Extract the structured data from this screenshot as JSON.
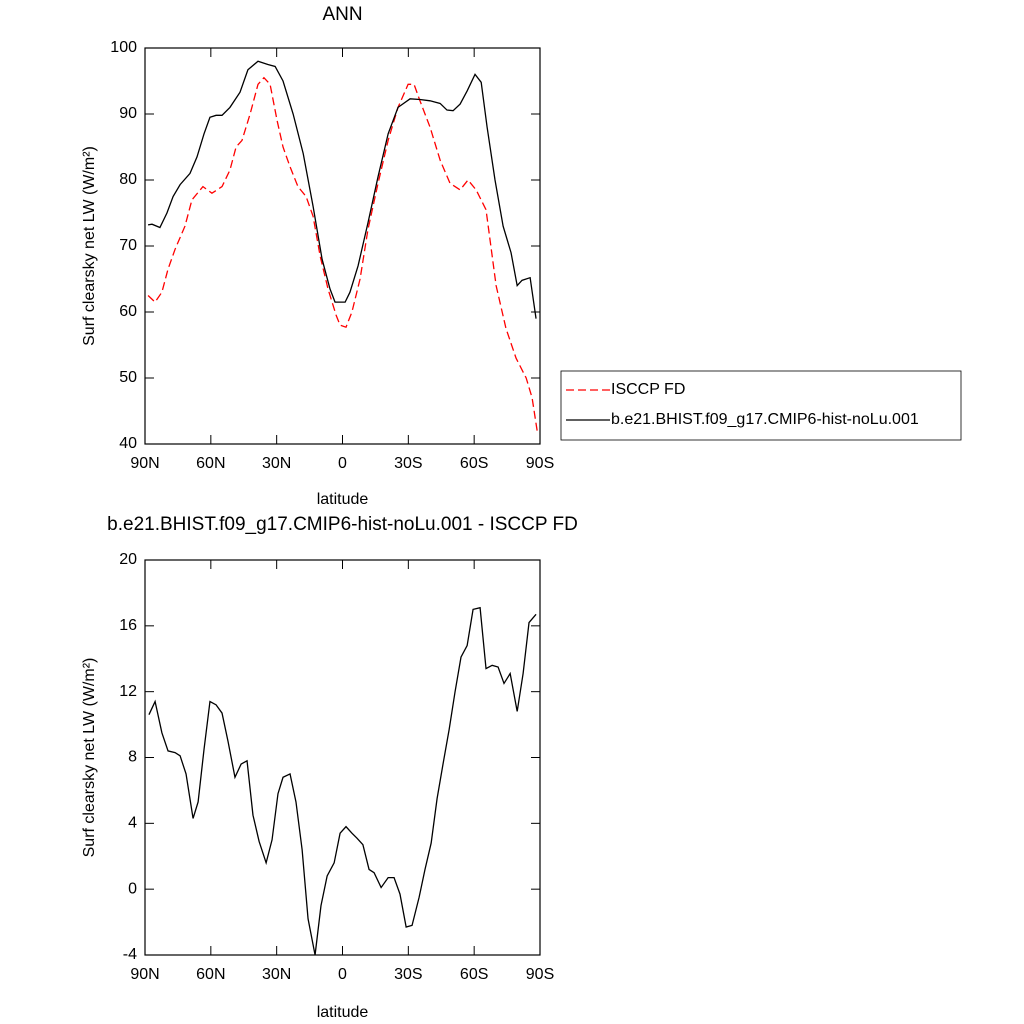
{
  "chart_data": [
    {
      "type": "line",
      "title": "ANN",
      "xlabel": "latitude",
      "ylabel": "Surf clearsky net LW (W/m²)",
      "xlim": [
        90,
        -90
      ],
      "ylim": [
        40,
        100
      ],
      "xticks": [
        {
          "value": 90,
          "label": "90N"
        },
        {
          "value": 60,
          "label": "60N"
        },
        {
          "value": 30,
          "label": "30N"
        },
        0,
        {
          "value": -30,
          "label": "30S"
        },
        {
          "value": -60,
          "label": "60S"
        },
        {
          "value": -90,
          "label": "90S"
        }
      ],
      "yticks": [
        40,
        50,
        60,
        70,
        80,
        90,
        100
      ],
      "legend": "right",
      "series": [
        {
          "name": "ISCCP FD",
          "color": "#ff0000",
          "line_style": "dashed",
          "x": [
            88.6,
            85.4,
            82.3,
            79.5,
            76.3,
            71.8,
            68.6,
            63.6,
            59.5,
            54.9,
            51.3,
            48.5,
            45.8,
            42.1,
            38.5,
            35.8,
            33.0,
            29.8,
            27.1,
            23.9,
            20.3,
            16.6,
            13.4,
            10.2,
            6.6,
            2.9,
            1.1,
            -1.6,
            -4.3,
            -8.0,
            -11.6,
            -16.2,
            -20.8,
            -25.3,
            -29.9,
            -32.6,
            -35.3,
            -39.9,
            -44.5,
            -49.0,
            -53.6,
            -57.2,
            -60.9,
            -65.4,
            -70.0,
            -74.5,
            -79.1,
            -83.7,
            -86.4,
            -88.7
          ],
          "values": [
            62.5,
            61.5,
            63,
            66.5,
            69.5,
            73,
            77,
            79,
            78,
            79,
            81.5,
            85,
            86,
            90,
            94.5,
            95.5,
            94.5,
            89,
            85,
            82,
            79,
            77.5,
            74.5,
            68.5,
            63.5,
            59.5,
            58,
            57.7,
            60,
            65,
            72.5,
            79.5,
            86,
            91,
            94.5,
            94.5,
            92,
            88,
            83,
            79.5,
            78.5,
            80,
            78.5,
            75.5,
            64,
            57.5,
            53,
            50,
            47,
            42
          ]
        },
        {
          "name": "b.e21.BHIST.f09_g17.CMIP6-hist-noLu.001",
          "color": "#000000",
          "line_style": "solid",
          "x": [
            88.6,
            86.8,
            83.2,
            80.0,
            77.2,
            74.0,
            69.5,
            66.3,
            63.1,
            60.4,
            57.6,
            54.9,
            51.3,
            46.7,
            43.1,
            38.5,
            34.0,
            30.7,
            27.1,
            22.5,
            17.9,
            13.4,
            9.3,
            5.7,
            3.4,
            -1.2,
            -3.4,
            -7.1,
            -11.6,
            -16.2,
            -20.8,
            -25.3,
            -30.8,
            -35.3,
            -39.9,
            -44.5,
            -47.6,
            -50.4,
            -53.6,
            -56.8,
            -60.4,
            -63.2,
            -65.9,
            -69.5,
            -73.2,
            -76.8,
            -79.6,
            -81.8,
            -85.5,
            -88.2
          ],
          "values": [
            73.2,
            73.3,
            72.8,
            75,
            77.5,
            79.3,
            81,
            83.5,
            87,
            89.5,
            89.8,
            89.8,
            91,
            93.3,
            96.7,
            98,
            97.5,
            97.2,
            95,
            90,
            84,
            76,
            68,
            63.5,
            61.5,
            61.5,
            63,
            67,
            73.5,
            80.5,
            87,
            91,
            92.3,
            92.2,
            92,
            91.6,
            90.6,
            90.5,
            91.5,
            93.5,
            96,
            94.8,
            88,
            80,
            73,
            69,
            64,
            64.8,
            65.2,
            59
          ]
        }
      ]
    },
    {
      "type": "line",
      "title": "b.e21.BHIST.f09_g17.CMIP6-hist-noLu.001 - ISCCP FD",
      "xlabel": "latitude",
      "ylabel": "Surf clearsky net LW (W/m²)",
      "xlim": [
        90,
        -90
      ],
      "ylim": [
        -4,
        20
      ],
      "xticks": [
        {
          "value": 90,
          "label": "90N"
        },
        {
          "value": 60,
          "label": "60N"
        },
        {
          "value": 30,
          "label": "30N"
        },
        0,
        {
          "value": -30,
          "label": "30S"
        },
        {
          "value": -60,
          "label": "60S"
        },
        {
          "value": -90,
          "label": "90S"
        }
      ],
      "yticks": [
        -4,
        0,
        4,
        8,
        12,
        16,
        20
      ],
      "series": [
        {
          "color": "#000000",
          "line_style": "solid",
          "x": [
            88.2,
            85.4,
            82.3,
            79.5,
            76.3,
            74.0,
            71.3,
            68.1,
            65.8,
            63.1,
            60.4,
            57.6,
            54.9,
            52.2,
            49.0,
            46.2,
            43.5,
            40.8,
            38.0,
            34.8,
            32.1,
            29.4,
            27.1,
            23.9,
            21.2,
            18.4,
            15.7,
            12.5,
            9.8,
            7.0,
            3.8,
            1.1,
            -1.6,
            -4.3,
            -6.6,
            -9.3,
            -12.1,
            -14.4,
            -17.6,
            -20.8,
            -23.5,
            -26.2,
            -29.0,
            -31.7,
            -34.9,
            -37.6,
            -40.4,
            -43.1,
            -45.8,
            -48.6,
            -51.3,
            -54.0,
            -56.8,
            -59.5,
            -62.7,
            -65.4,
            -68.2,
            -70.9,
            -73.6,
            -76.4,
            -79.6,
            -82.3,
            -85.0,
            -88.2
          ],
          "values": [
            10.6,
            11.4,
            9.5,
            8.4,
            8.3,
            8.1,
            7,
            4.3,
            5.3,
            8.5,
            11.4,
            11.2,
            10.7,
            9,
            6.8,
            7.6,
            7.8,
            4.5,
            2.9,
            1.6,
            3,
            5.8,
            6.8,
            7,
            5.3,
            2.4,
            -1.8,
            -4,
            -1,
            0.8,
            1.6,
            3.4,
            3.8,
            3.4,
            3.1,
            2.7,
            1.2,
            1,
            0.1,
            0.7,
            0.7,
            -0.3,
            -2.3,
            -2.2,
            -0.5,
            1.2,
            2.8,
            5.5,
            7.6,
            9.7,
            12,
            14.1,
            14.8,
            17,
            17.1,
            13.4,
            13.6,
            13.5,
            12.5,
            13.1,
            10.8,
            13.1,
            16.2,
            16.7
          ]
        }
      ]
    }
  ]
}
